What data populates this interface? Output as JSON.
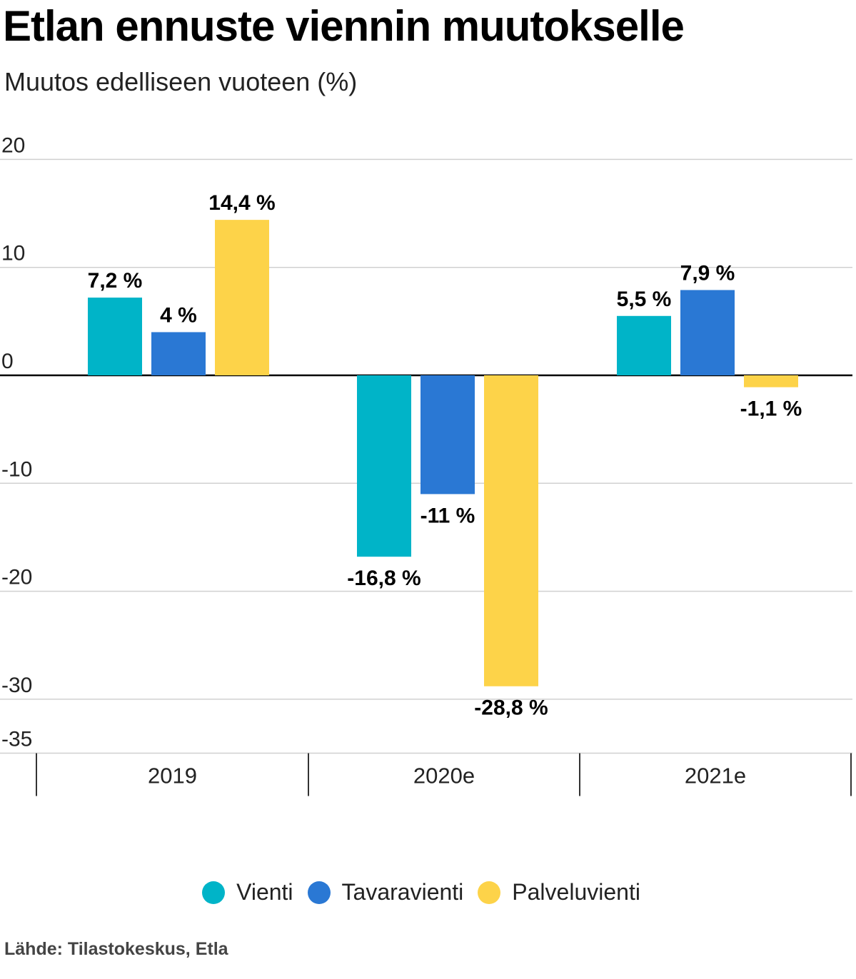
{
  "chart_data": {
    "type": "bar",
    "title": "Etlan ennuste viennin muutokselle",
    "subtitle": "Muutos edelliseen vuoteen (%)",
    "categories": [
      "2019",
      "2020e",
      "2021e"
    ],
    "series": [
      {
        "name": "Vienti",
        "color": "#00b4c8",
        "values": [
          7.2,
          -16.8,
          5.5
        ],
        "labels": [
          "7,2 %",
          "-16,8 %",
          "5,5 %"
        ]
      },
      {
        "name": "Tavaravienti",
        "color": "#2a78d4",
        "values": [
          4,
          -11,
          7.9
        ],
        "labels": [
          "4 %",
          "-11 %",
          "7,9 %"
        ]
      },
      {
        "name": "Palveluvienti",
        "color": "#fdd349",
        "values": [
          14.4,
          -28.8,
          -1.1
        ],
        "labels": [
          "14,4 %",
          "-28,8 %",
          "-1,1 %"
        ]
      }
    ],
    "y_ticks": [
      20,
      10,
      0,
      -10,
      -20,
      -30,
      -35
    ],
    "y_tick_labels": [
      "20",
      "10",
      "0",
      "-10",
      "-20",
      "-30",
      "-35"
    ],
    "ylim": [
      -35,
      20
    ],
    "grid": true,
    "legend": "bottom",
    "xlabel": "",
    "ylabel": ""
  },
  "source": "Lähde: Tilastokeskus, Etla"
}
